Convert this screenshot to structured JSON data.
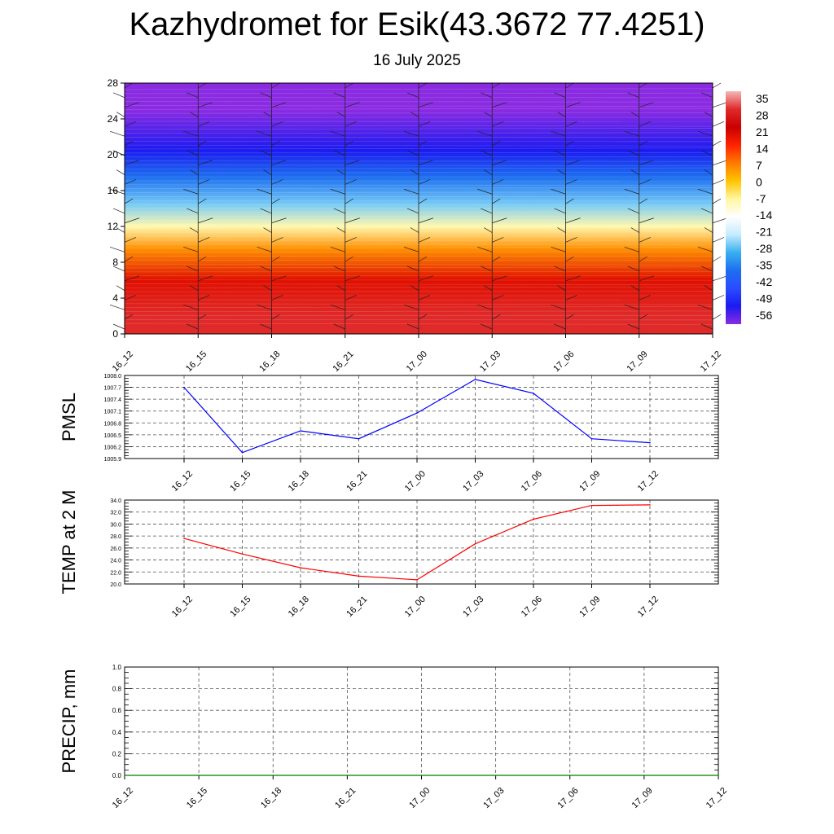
{
  "title": "Kazhydromet for Esik(43.3672 77.4251)",
  "subtitle": "16 July 2025",
  "chart_data": [
    {
      "type": "heatmap",
      "x_tick_labels": [
        "16_12",
        "16_15",
        "16_18",
        "16_21",
        "17_00",
        "17_03",
        "17_06",
        "17_09",
        "17_12"
      ],
      "y_ticks": [
        0,
        4,
        8,
        12,
        16,
        20,
        24,
        28
      ],
      "ylim": [
        0,
        28
      ],
      "description_bands": [
        {
          "y_from": 0,
          "y_to": 4,
          "value": 28
        },
        {
          "y_from": 4,
          "y_to": 8,
          "value": 18
        },
        {
          "y_from": 8,
          "y_to": 11,
          "value": 5
        },
        {
          "y_from": 11,
          "y_to": 13,
          "value": -8
        },
        {
          "y_from": 13,
          "y_to": 16,
          "value": -25
        },
        {
          "y_from": 16,
          "y_to": 19,
          "value": -42
        },
        {
          "y_from": 19,
          "y_to": 22,
          "value": -56
        },
        {
          "y_from": 22,
          "y_to": 28,
          "value": -62
        }
      ],
      "colorbar_labels": [
        "35",
        "28",
        "21",
        "14",
        "7",
        "0",
        "-7",
        "-14",
        "-21",
        "-28",
        "-35",
        "-42",
        "-49",
        "-56"
      ],
      "colorbar_colors": [
        "#f4b7b7",
        "#e02a2a",
        "#c80000",
        "#ff2200",
        "#ff7a00",
        "#ffc400",
        "#fff7a0",
        "#ffffff",
        "#c6ecff",
        "#38b0f0",
        "#1d6ff0",
        "#2a4cff",
        "#1b1bf0",
        "#8a2be2"
      ]
    },
    {
      "type": "line",
      "ylabel": "PMSL",
      "ylim": [
        1005.9,
        1008.0
      ],
      "y_ticks": [
        "1005.9",
        "1006.2",
        "1006.5",
        "1006.8",
        "1007.1",
        "1007.4",
        "1007.7",
        "1008.0"
      ],
      "x_tick_labels": [
        "16_12",
        "16_15",
        "16_18",
        "16_21",
        "17_00",
        "17_03",
        "17_06",
        "17_09",
        "17_12"
      ],
      "series": [
        {
          "values": [
            1007.7,
            1006.05,
            1006.6,
            1006.4,
            1007.05,
            1007.9,
            1007.55,
            1006.4,
            1006.3
          ],
          "color": "#0000ff"
        }
      ]
    },
    {
      "type": "line",
      "ylabel": "TEMP at 2 M",
      "ylim": [
        20.0,
        34.0
      ],
      "y_ticks": [
        "20.0",
        "22.0",
        "24.0",
        "26.0",
        "28.0",
        "30.0",
        "32.0",
        "34.0"
      ],
      "x_tick_labels": [
        "16_12",
        "16_15",
        "16_18",
        "16_21",
        "17_00",
        "17_03",
        "17_06",
        "17_09",
        "17_12"
      ],
      "series": [
        {
          "values": [
            27.6,
            25.0,
            22.7,
            21.3,
            20.7,
            26.7,
            30.8,
            33.1,
            33.2
          ],
          "color": "#ff0000"
        }
      ]
    },
    {
      "type": "line",
      "ylabel": "PRECIP, mm",
      "ylim": [
        0.0,
        1.0
      ],
      "y_ticks": [
        "0.0",
        "0.2",
        "0.4",
        "0.6",
        "0.8",
        "1.0"
      ],
      "x_tick_labels": [
        "16_12",
        "16_15",
        "16_18",
        "16_21",
        "17_00",
        "17_03",
        "17_06",
        "17_09",
        "17_12"
      ],
      "series": [
        {
          "values": [
            0,
            0,
            0,
            0,
            0,
            0,
            0,
            0,
            0
          ],
          "color": "#007a00"
        }
      ]
    }
  ]
}
